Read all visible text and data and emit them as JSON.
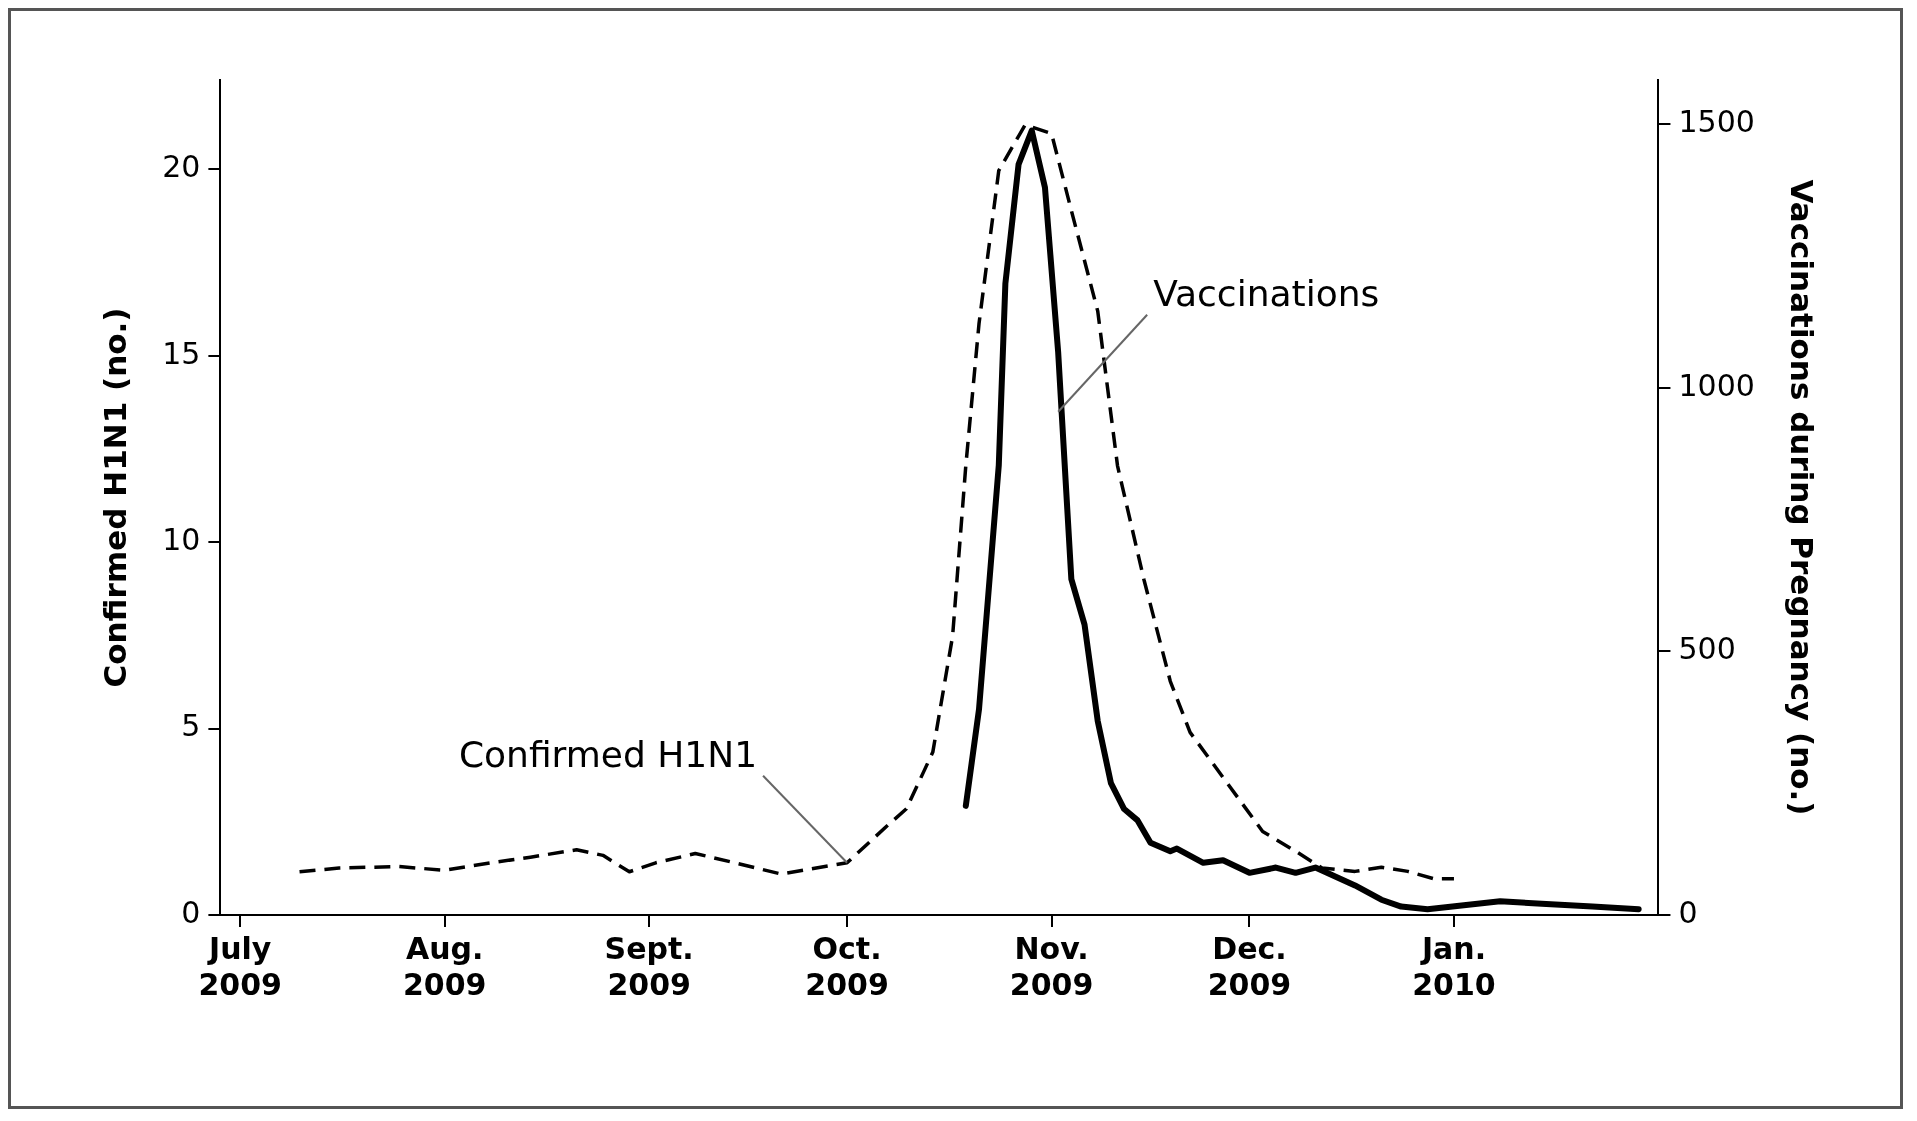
{
  "chart_data": {
    "type": "line",
    "ylabel": "Confirmed H1N1 (no.)",
    "y2label": "Vaccinations during Pregnancy (no.)",
    "xlim": [
      "2009-06-28",
      "2010-02-01"
    ],
    "xticks": [
      {
        "value": "2009-07-01",
        "label": "July 2009"
      },
      {
        "value": "2009-08-01",
        "label": "Aug. 2009"
      },
      {
        "value": "2009-09-01",
        "label": "Sept. 2009"
      },
      {
        "value": "2009-10-01",
        "label": "Oct. 2009"
      },
      {
        "value": "2009-11-01",
        "label": "Nov. 2009"
      },
      {
        "value": "2009-12-01",
        "label": "Dec. 2009"
      },
      {
        "value": "2010-01-01",
        "label": "Jan. 2010"
      }
    ],
    "ylim": [
      0,
      22.4
    ],
    "yticks": [
      0,
      5,
      10,
      15,
      20
    ],
    "y2lim": [
      0,
      1584
    ],
    "y2ticks": [
      0,
      500,
      1000,
      1500
    ],
    "grid": false,
    "legend": false,
    "marker": "none",
    "series": [
      {
        "color": "#000000",
        "line_style": "dashed",
        "x": [
          "2009-07-10",
          "2009-07-16",
          "2009-07-25",
          "2009-08-01",
          "2009-08-08",
          "2009-08-14",
          "2009-08-21",
          "2009-08-25",
          "2009-08-29",
          "2009-09-02",
          "2009-09-08",
          "2009-09-14",
          "2009-09-21",
          "2009-10-01",
          "2009-10-07",
          "2009-10-10",
          "2009-10-14",
          "2009-10-17",
          "2009-10-19",
          "2009-10-21",
          "2009-10-24",
          "2009-10-28",
          "2009-11-01",
          "2009-11-04",
          "2009-11-08",
          "2009-11-11",
          "2009-11-15",
          "2009-11-19",
          "2009-11-22",
          "2009-11-27",
          "2009-12-03",
          "2009-12-08",
          "2009-12-12",
          "2009-12-17",
          "2009-12-21",
          "2009-12-25",
          "2009-12-29",
          "2010-01-01"
        ],
        "values": [
          1.16,
          1.26,
          1.3,
          1.2,
          1.4,
          1.55,
          1.75,
          1.6,
          1.16,
          1.4,
          1.65,
          1.4,
          1.1,
          1.4,
          2.38,
          2.85,
          4.37,
          7.48,
          12.05,
          15.86,
          19.97,
          21.2,
          20.96,
          18.9,
          16.2,
          12.05,
          9.0,
          6.27,
          4.9,
          3.69,
          2.24,
          1.71,
          1.26,
          1.17,
          1.28,
          1.17,
          0.97,
          0.97
        ]
      },
      {
        "color": "#000000",
        "line_style": "solid",
        "axis": "y2",
        "x": [
          "2009-10-19",
          "2009-10-21",
          "2009-10-24",
          "2009-10-25",
          "2009-10-27",
          "2009-10-29",
          "2009-10-31",
          "2009-11-02",
          "2009-11-04",
          "2009-11-06",
          "2009-11-08",
          "2009-11-10",
          "2009-11-12",
          "2009-11-14",
          "2009-11-16",
          "2009-11-19",
          "2009-11-20",
          "2009-11-24",
          "2009-11-27",
          "2009-12-01",
          "2009-12-05",
          "2009-12-08",
          "2009-12-11",
          "2009-12-17",
          "2009-12-21",
          "2009-12-24",
          "2009-12-28",
          "2010-01-08",
          "2010-01-15",
          "2010-01-22",
          "2010-01-29"
        ],
        "values": [
          207,
          390,
          853,
          1198,
          1424,
          1488,
          1380,
          1068,
          637,
          551,
          368,
          250,
          201,
          180,
          137,
          121,
          126,
          99,
          104,
          80,
          90,
          80,
          90,
          56,
          29,
          16,
          11,
          26,
          21,
          16,
          11
        ]
      }
    ],
    "annotations": [
      {
        "text": "Confirmed H1N1",
        "x": "2009-10-01",
        "y": 1.4
      },
      {
        "text": "Vaccinations",
        "x": "2009-11-02",
        "y": 13.5
      }
    ]
  }
}
